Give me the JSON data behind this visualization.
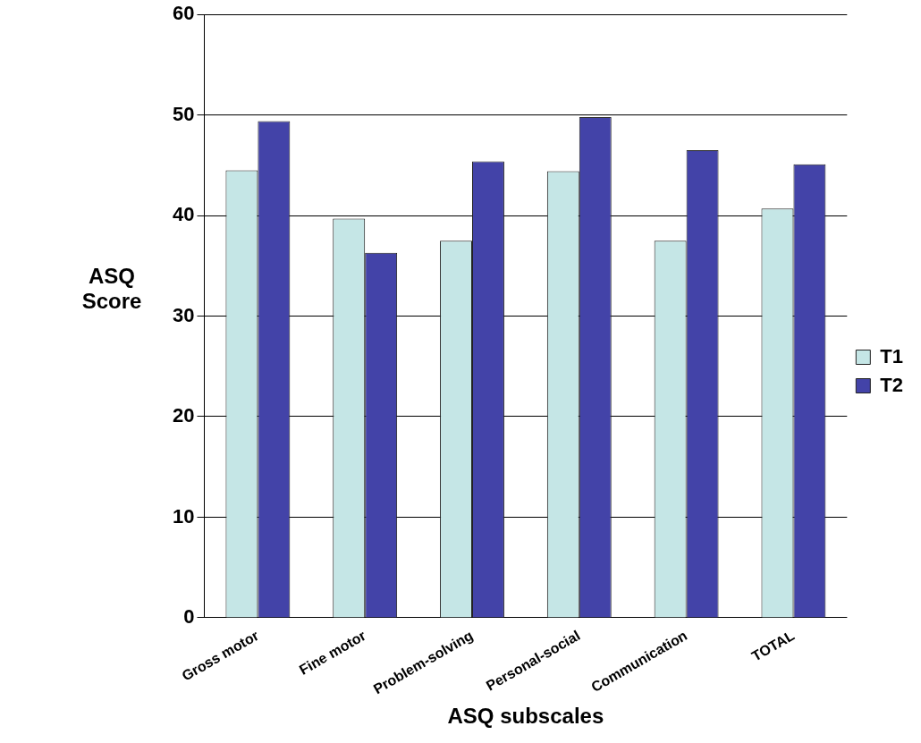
{
  "chart_data": {
    "type": "bar",
    "xlabel": "ASQ subscales",
    "ylabel": "ASQ Score",
    "categories": [
      "Gross motor",
      "Fine motor",
      "Problem-solving",
      "Personal-social",
      "Communication",
      "TOTAL"
    ],
    "series": [
      {
        "name": "T1",
        "color": "#c5e6e6",
        "values": [
          44.5,
          39.7,
          37.5,
          44.4,
          37.5,
          40.7
        ]
      },
      {
        "name": "T2",
        "color": "#4343a8",
        "values": [
          49.4,
          36.3,
          45.4,
          49.8,
          46.5,
          45.1
        ]
      }
    ],
    "ylim": [
      0,
      60
    ],
    "yticks": [
      0,
      10,
      20,
      30,
      40,
      50,
      60
    ],
    "grid": "y",
    "legend": "right"
  }
}
